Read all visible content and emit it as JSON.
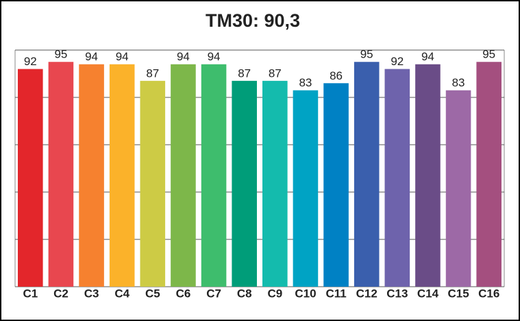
{
  "chart_data": {
    "type": "bar",
    "title": "TM30: 90,3",
    "categories": [
      "C1",
      "C2",
      "C3",
      "C4",
      "C5",
      "C6",
      "C7",
      "C8",
      "C9",
      "C10",
      "C11",
      "C12",
      "C13",
      "C14",
      "C15",
      "C16"
    ],
    "values": [
      92,
      95,
      94,
      94,
      87,
      94,
      94,
      87,
      87,
      83,
      86,
      95,
      92,
      94,
      83,
      95
    ],
    "colors": [
      "#e3262b",
      "#e8474f",
      "#f6812f",
      "#fbb22a",
      "#cdcb45",
      "#7db74a",
      "#3ebd6d",
      "#009d79",
      "#14bbad",
      "#00a3c4",
      "#0081c4",
      "#3a5fad",
      "#6e63ac",
      "#6a4c87",
      "#9d69a6",
      "#a44f7f"
    ],
    "ylim": [
      0,
      100
    ],
    "yticks": [
      0,
      20,
      40,
      60,
      80,
      100
    ],
    "grid": true
  }
}
